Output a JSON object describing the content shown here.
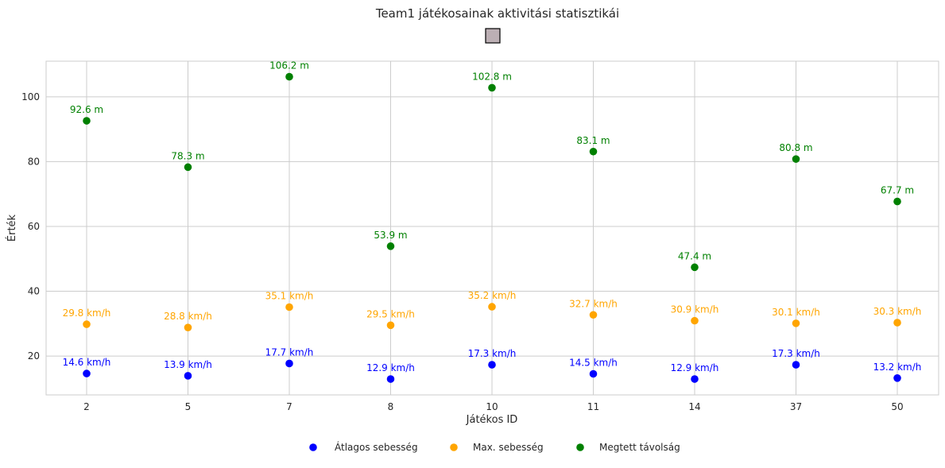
{
  "chart_data": {
    "type": "scatter",
    "title": "Team1 játékosainak aktivitási statisztikái",
    "xlabel": "Játékos ID",
    "ylabel": "Érték",
    "categories": [
      "2",
      "5",
      "7",
      "8",
      "10",
      "11",
      "14",
      "37",
      "50"
    ],
    "ylim": [
      8,
      111
    ],
    "yticks": [
      20,
      40,
      60,
      80,
      100
    ],
    "grid": true,
    "legend_position": "bottom-center",
    "series": [
      {
        "name": "Átlagos sebesség",
        "color": "#0000ff",
        "values": [
          14.6,
          13.9,
          17.7,
          12.9,
          17.3,
          14.5,
          12.9,
          17.3,
          13.2
        ],
        "labels": [
          "14.6 km/h",
          "13.9 km/h",
          "17.7 km/h",
          "12.9 km/h",
          "17.3 km/h",
          "14.5 km/h",
          "12.9 km/h",
          "17.3 km/h",
          "13.2 km/h"
        ]
      },
      {
        "name": "Max. sebesség",
        "color": "#ffa500",
        "values": [
          29.8,
          28.8,
          35.1,
          29.5,
          35.2,
          32.7,
          30.9,
          30.1,
          30.3
        ],
        "labels": [
          "29.8 km/h",
          "28.8 km/h",
          "35.1 km/h",
          "29.5 km/h",
          "35.2 km/h",
          "32.7 km/h",
          "30.9 km/h",
          "30.1 km/h",
          "30.3 km/h"
        ]
      },
      {
        "name": "Megtett távolság",
        "color": "#008000",
        "values": [
          92.6,
          78.3,
          106.2,
          53.9,
          102.8,
          83.1,
          47.4,
          80.8,
          67.7
        ],
        "labels": [
          "92.6 m",
          "78.3 m",
          "106.2 m",
          "53.9 m",
          "102.8 m",
          "83.1 m",
          "47.4 m",
          "80.8 m",
          "67.7 m"
        ]
      }
    ],
    "legend_box_color": "#bcafb4"
  }
}
